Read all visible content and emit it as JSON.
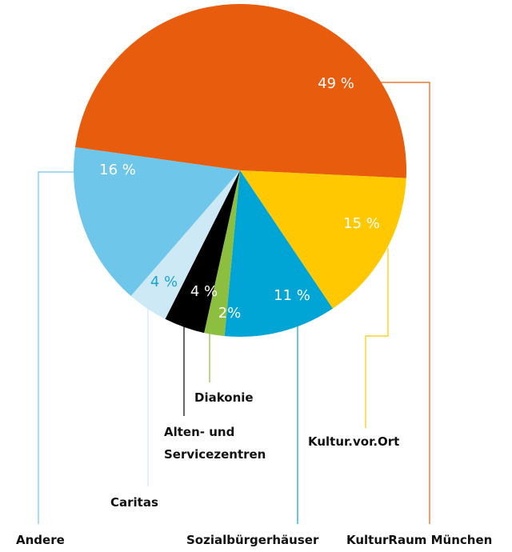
{
  "chart_data": {
    "type": "pie",
    "categories": [
      "KulturRaum München",
      "Kultur.vor.Ort",
      "Sozialbürgerhäuser",
      "Diakonie",
      "Alten- und Servicezentren",
      "Caritas",
      "Andere"
    ],
    "values": [
      49,
      15,
      11,
      2,
      4,
      4,
      16
    ],
    "value_labels": [
      "49 %",
      "15 %",
      "11 %",
      "2%",
      "4 %",
      "4 %",
      "16 %"
    ],
    "colors": [
      "#e85c0d",
      "#ffc800",
      "#00a5d6",
      "#8cbf3f",
      "#000000",
      "#cde9f6",
      "#6ec6ea"
    ],
    "label_colors": [
      "#ffffff",
      "#ffffff",
      "#ffffff",
      "#ffffff",
      "#ffffff",
      "#1ba3d3",
      "#ffffff"
    ]
  }
}
